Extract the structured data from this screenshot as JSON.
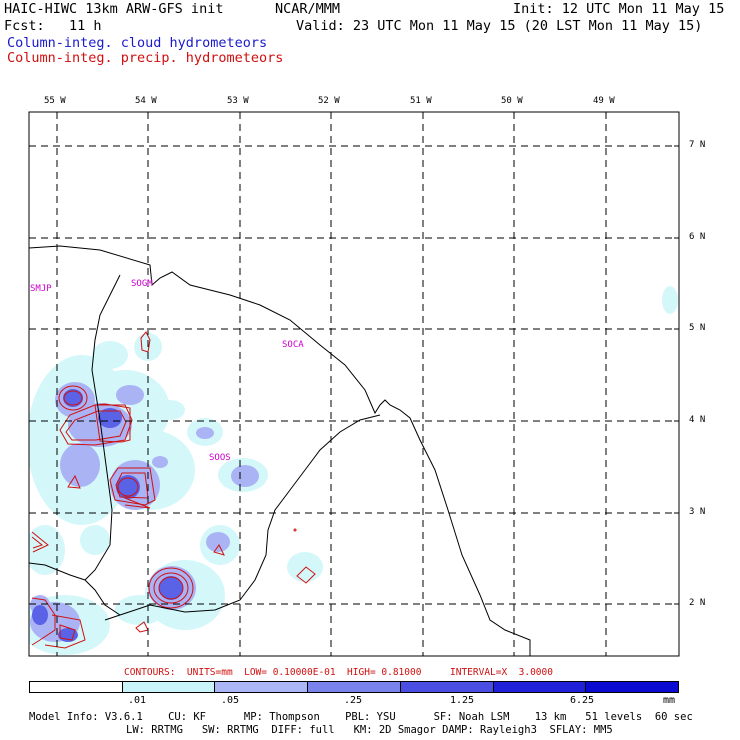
{
  "header": {
    "title_left": "HAIC-HIWC 13km ARW-GFS init",
    "org": "NCAR/MMM",
    "init": "Init: 12 UTC Mon 11 May 15",
    "fcst": "Fcst:   11 h",
    "valid": "Valid: 23 UTC Mon 11 May 15 (20 LST Mon 11 May 15)"
  },
  "legend": {
    "cloud": "Column-integ. cloud hydrometeors",
    "precip": "Column-integ. precip. hydrometeors",
    "cloud_color": "#1a1acc",
    "precip_color": "#d01010"
  },
  "map": {
    "lon_labels": [
      "55 W",
      "54 W",
      "53 W",
      "52 W",
      "51 W",
      "50 W",
      "49 W"
    ],
    "lat_labels": [
      "7 N",
      "6 N",
      "5 N",
      "4 N",
      "3 N",
      "2 N"
    ],
    "stations": [
      "SMJP",
      "SOGM",
      "SOCA",
      "SOOS"
    ],
    "coastline_color": "#000000",
    "contour_color": "#d01010",
    "fill_colors": [
      "#d4f7fa",
      "#aab4f5",
      "#7a82ec",
      "#5050e0",
      "#2a2ad6",
      "#0a0ad0"
    ]
  },
  "footer": {
    "contours": "CONTOURS:  UNITS=mm  LOW= 0.10000E-01  HIGH= 0.81000     INTERVAL=X  3.0000",
    "colorbar": {
      "labels": [
        ".01",
        ".05",
        ".25",
        "1.25",
        "6.25"
      ],
      "unit": "mm",
      "colors": [
        "#ffffff",
        "#c8f4fa",
        "#aab6f5",
        "#7a82ec",
        "#4a4ee2",
        "#2020d8",
        "#0a0ad0"
      ]
    },
    "model_line1": "Model Info: V3.6.1    CU: KF      MP: Thompson    PBL: YSU      SF: Noah LSM    13 km   51 levels  60 sec",
    "model_line2": "LW: RRTMG   SW: RRTMG  DIFF: full   KM: 2D Smagor DAMP: Rayleigh3  SFLAY: MM5"
  }
}
